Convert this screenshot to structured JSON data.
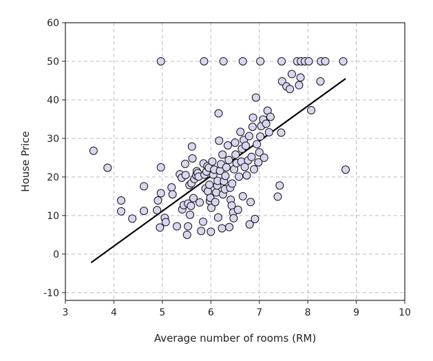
{
  "chart_data": {
    "type": "scatter",
    "title": "",
    "xlabel": "Average number of rooms (RM)",
    "ylabel": "House Price",
    "xlim": [
      3,
      10
    ],
    "ylim": [
      -12,
      60
    ],
    "x_ticks": [
      3,
      4,
      5,
      6,
      7,
      8,
      9,
      10
    ],
    "y_ticks": [
      -10,
      0,
      10,
      20,
      30,
      40,
      50,
      60
    ],
    "x_tick_labels": [
      "3",
      "4",
      "5",
      "6",
      "7",
      "8",
      "9",
      "10"
    ],
    "y_tick_labels": [
      "-10",
      "0",
      "10",
      "20",
      "30",
      "40",
      "50",
      "60"
    ],
    "grid": true,
    "legend": "none",
    "colors": {
      "marker_fill": "#d8d6f0",
      "marker_stroke": "#111111",
      "line": "#000000",
      "grid": "#b3bcc9",
      "axis": "#222222"
    },
    "series": [
      {
        "values": [
          [
            4.97,
            50.0
          ],
          [
            5.86,
            50.0
          ],
          [
            6.26,
            50.0
          ],
          [
            6.66,
            50.0
          ],
          [
            7.02,
            50.0
          ],
          [
            7.46,
            50.0
          ],
          [
            7.78,
            50.0
          ],
          [
            7.86,
            50.0
          ],
          [
            7.94,
            50.0
          ],
          [
            8.02,
            50.0
          ],
          [
            8.27,
            50.0
          ],
          [
            8.36,
            50.0
          ],
          [
            8.73,
            50.0
          ],
          [
            3.58,
            26.8
          ],
          [
            3.87,
            22.4
          ],
          [
            4.15,
            13.9
          ],
          [
            4.15,
            11.1
          ],
          [
            4.38,
            9.2
          ],
          [
            4.62,
            17.6
          ],
          [
            4.62,
            11.2
          ],
          [
            4.89,
            11.4
          ],
          [
            4.91,
            13.9
          ],
          [
            4.95,
            6.9
          ],
          [
            4.97,
            15.8
          ],
          [
            4.97,
            22.5
          ],
          [
            5.05,
            9.4
          ],
          [
            5.07,
            8.3
          ],
          [
            5.19,
            17.3
          ],
          [
            5.21,
            15.5
          ],
          [
            5.3,
            7.2
          ],
          [
            5.36,
            20.7
          ],
          [
            5.4,
            19.8
          ],
          [
            5.41,
            11.6
          ],
          [
            5.44,
            12.7
          ],
          [
            5.47,
            23.4
          ],
          [
            5.48,
            20.5
          ],
          [
            5.51,
            5.0
          ],
          [
            5.53,
            13.1
          ],
          [
            5.53,
            7.2
          ],
          [
            5.56,
            17.9
          ],
          [
            5.57,
            10.2
          ],
          [
            5.59,
            12.5
          ],
          [
            5.6,
            18.4
          ],
          [
            5.61,
            27.9
          ],
          [
            5.62,
            24.8
          ],
          [
            5.64,
            14.5
          ],
          [
            5.66,
            19.5
          ],
          [
            5.7,
            20.4
          ],
          [
            5.71,
            21.5
          ],
          [
            5.73,
            21.0
          ],
          [
            5.75,
            20.1
          ],
          [
            5.77,
            13.4
          ],
          [
            5.8,
            6.0
          ],
          [
            5.84,
            8.4
          ],
          [
            5.85,
            23.5
          ],
          [
            5.87,
            20.6
          ],
          [
            5.89,
            17.0
          ],
          [
            5.91,
            21.4
          ],
          [
            5.93,
            22.8
          ],
          [
            5.94,
            16.3
          ],
          [
            5.96,
            22.4
          ],
          [
            5.97,
            18.0
          ],
          [
            5.98,
            13.8
          ],
          [
            5.99,
            14.6
          ],
          [
            6.0,
            5.8
          ],
          [
            6.01,
            12.0
          ],
          [
            6.03,
            24.0
          ],
          [
            6.05,
            20.6
          ],
          [
            6.07,
            21.9
          ],
          [
            6.09,
            13.5
          ],
          [
            6.11,
            16.0
          ],
          [
            6.13,
            17.8
          ],
          [
            6.14,
            19.0
          ],
          [
            6.15,
            9.5
          ],
          [
            6.16,
            36.5
          ],
          [
            6.17,
            29.4
          ],
          [
            6.19,
            21.6
          ],
          [
            6.21,
            23.3
          ],
          [
            6.23,
            6.7
          ],
          [
            6.24,
            25.8
          ],
          [
            6.25,
            15.5
          ],
          [
            6.27,
            18.9
          ],
          [
            6.29,
            16.8
          ],
          [
            6.3,
            20.3
          ],
          [
            6.32,
            22.5
          ],
          [
            6.35,
            28.2
          ],
          [
            6.37,
            24.4
          ],
          [
            6.38,
            7.0
          ],
          [
            6.4,
            17.2
          ],
          [
            6.41,
            14.1
          ],
          [
            6.43,
            12.6
          ],
          [
            6.44,
            18.3
          ],
          [
            6.46,
            10.8
          ],
          [
            6.47,
            9.3
          ],
          [
            6.48,
            22.0
          ],
          [
            6.5,
            28.9
          ],
          [
            6.51,
            25.8
          ],
          [
            6.53,
            23.6
          ],
          [
            6.56,
            11.5
          ],
          [
            6.58,
            20.1
          ],
          [
            6.61,
            31.7
          ],
          [
            6.63,
            24.0
          ],
          [
            6.64,
            27.3
          ],
          [
            6.66,
            15.0
          ],
          [
            6.68,
            29.6
          ],
          [
            6.7,
            22.6
          ],
          [
            6.72,
            28.1
          ],
          [
            6.74,
            20.4
          ],
          [
            6.77,
            24.3
          ],
          [
            6.79,
            30.6
          ],
          [
            6.8,
            7.7
          ],
          [
            6.82,
            13.5
          ],
          [
            6.84,
            25.2
          ],
          [
            6.86,
            33.0
          ],
          [
            6.87,
            35.4
          ],
          [
            6.89,
            22.0
          ],
          [
            6.91,
            9.1
          ],
          [
            6.93,
            40.6
          ],
          [
            6.95,
            28.5
          ],
          [
            6.98,
            23.8
          ],
          [
            7.0,
            26.4
          ],
          [
            7.02,
            30.5
          ],
          [
            7.04,
            33.2
          ],
          [
            7.08,
            34.9
          ],
          [
            7.1,
            25.0
          ],
          [
            7.14,
            33.8
          ],
          [
            7.17,
            37.2
          ],
          [
            7.2,
            31.6
          ],
          [
            7.23,
            35.6
          ],
          [
            7.38,
            14.9
          ],
          [
            7.42,
            17.8
          ],
          [
            7.45,
            31.5
          ],
          [
            7.47,
            44.8
          ],
          [
            7.56,
            43.5
          ],
          [
            7.63,
            42.8
          ],
          [
            7.67,
            46.7
          ],
          [
            7.82,
            43.8
          ],
          [
            7.85,
            45.8
          ],
          [
            8.07,
            37.3
          ],
          [
            8.26,
            44.8
          ],
          [
            8.78,
            21.9
          ]
        ]
      }
    ],
    "trend_line": {
      "x": [
        3.53,
        8.78
      ],
      "y": [
        -2.2,
        45.5
      ]
    }
  }
}
